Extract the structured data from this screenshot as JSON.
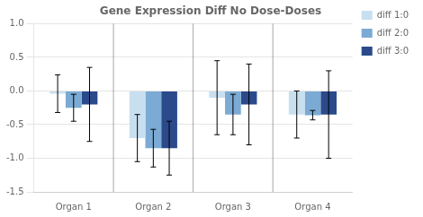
{
  "chart_data": {
    "type": "bar",
    "title": "Gene Expression Diff No Dose-Doses",
    "categories": [
      "Organ 1",
      "Organ 2",
      "Organ 3",
      "Organ 4"
    ],
    "series": [
      {
        "name": "diff 1:0",
        "color": "#c8dff0",
        "values": [
          -0.04,
          -0.7,
          -0.1,
          -0.35
        ],
        "errors": [
          0.28,
          0.35,
          0.55,
          0.35
        ]
      },
      {
        "name": "diff 2:0",
        "color": "#7baad4",
        "values": [
          -0.25,
          -0.85,
          -0.35,
          -0.36
        ],
        "errors": [
          0.2,
          0.28,
          0.3,
          0.07
        ]
      },
      {
        "name": "diff 3:0",
        "color": "#2b4a8c",
        "values": [
          -0.2,
          -0.85,
          -0.2,
          -0.35
        ],
        "errors": [
          0.55,
          0.4,
          0.6,
          0.65
        ]
      }
    ],
    "ylim": [
      -1.5,
      1.0
    ],
    "yticks": [
      -1.5,
      {
        "value": -1.0,
        "label": "-1.0"
      },
      -0.5,
      {
        "value": 0.0,
        "label": "0.0"
      },
      0.5,
      {
        "value": 1.0,
        "label": "1.0"
      }
    ],
    "grid": true,
    "legend": "upper right"
  }
}
